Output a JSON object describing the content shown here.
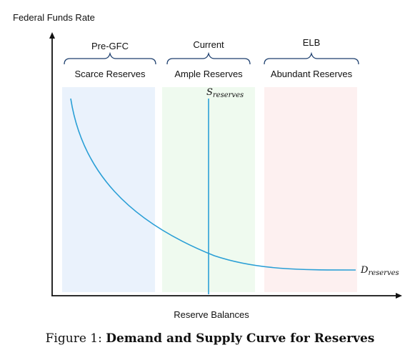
{
  "axes": {
    "y_label": "Federal Funds Rate",
    "x_label": "Reserve Balances"
  },
  "regions": [
    {
      "era": "Pre-GFC",
      "regime": "Scarce Reserves",
      "color": "#eaf2fc"
    },
    {
      "era": "Current",
      "regime": "Ample Reserves",
      "color": "#effaef"
    },
    {
      "era": "ELB",
      "regime": "Abundant Reserves",
      "color": "#fdf0f0"
    }
  ],
  "curves": {
    "supply": {
      "label": "S",
      "subscript": "reserves",
      "color": "#2a9fd6"
    },
    "demand": {
      "label": "D",
      "subscript": "reserves",
      "color": "#2a9fd6"
    }
  },
  "caption": {
    "prefix": "Figure 1:",
    "title": "Demand and Supply Curve for Reserves"
  }
}
